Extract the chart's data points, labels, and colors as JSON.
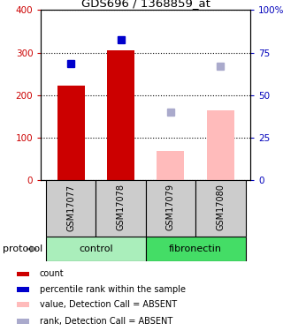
{
  "title": "GDS696 / 1368859_at",
  "samples": [
    "GSM17077",
    "GSM17078",
    "GSM17079",
    "GSM17080"
  ],
  "bar_values": [
    222,
    305,
    null,
    null
  ],
  "bar_color": "#cc0000",
  "bar_absent_values": [
    null,
    null,
    70,
    165
  ],
  "bar_absent_color": "#ffbbbb",
  "blue_squares": [
    275,
    330,
    null,
    null
  ],
  "blue_square_color": "#0000cc",
  "lightblue_squares": [
    null,
    null,
    160,
    268
  ],
  "lightblue_square_color": "#aaaacc",
  "ylim_left": [
    0,
    400
  ],
  "yticks_left": [
    0,
    100,
    200,
    300,
    400
  ],
  "ytick_color_left": "#cc0000",
  "ytick_color_right": "#0000bb",
  "groups": [
    {
      "label": "control",
      "indices": [
        0,
        1
      ],
      "color": "#aaeebb"
    },
    {
      "label": "fibronectin",
      "indices": [
        2,
        3
      ],
      "color": "#44dd66"
    }
  ],
  "protocol_label": "protocol",
  "legend_items": [
    {
      "label": "count",
      "color": "#cc0000"
    },
    {
      "label": "percentile rank within the sample",
      "color": "#0000cc"
    },
    {
      "label": "value, Detection Call = ABSENT",
      "color": "#ffbbbb"
    },
    {
      "label": "rank, Detection Call = ABSENT",
      "color": "#aaaacc"
    }
  ],
  "label_area_color": "#cccccc"
}
